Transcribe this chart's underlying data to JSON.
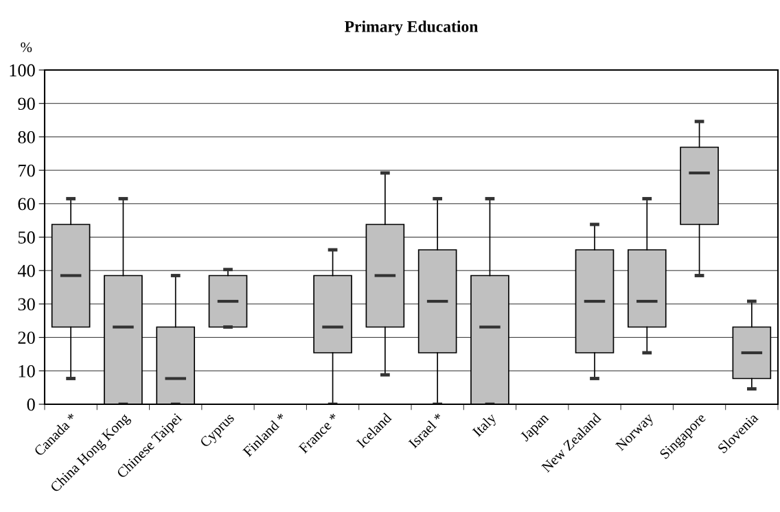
{
  "chart_data": {
    "type": "box",
    "title": "Primary Education",
    "ylabel": "%",
    "categories": [
      "Canada *",
      "China Hong Kong",
      "Chinese Taipei",
      "Cyprus",
      "Finland *",
      "France *",
      "Iceland",
      "Israel *",
      "Italy",
      "Japan",
      "New Zealand",
      "Norway",
      "Singapore",
      "Slovenia"
    ],
    "color": "#c0c0c0",
    "boxes": [
      {
        "low": 7.7,
        "q1": 23.1,
        "median": 38.5,
        "q3": 53.8,
        "high": 61.5
      },
      {
        "low": 0,
        "q1": 0,
        "median": 23.1,
        "q3": 38.5,
        "high": 61.5
      },
      {
        "low": 0,
        "q1": 0,
        "median": 7.7,
        "q3": 23.1,
        "high": 38.5
      },
      {
        "low": 23.1,
        "q1": 23.1,
        "median": 30.8,
        "q3": 38.5,
        "high": 40.3
      },
      null,
      {
        "low": 0,
        "q1": 15.4,
        "median": 23.1,
        "q3": 38.5,
        "high": 46.2
      },
      {
        "low": 8.8,
        "q1": 23.1,
        "median": 38.5,
        "q3": 53.8,
        "high": 69.2
      },
      {
        "low": 0,
        "q1": 15.4,
        "median": 30.8,
        "q3": 46.2,
        "high": 61.5
      },
      {
        "low": 0,
        "q1": 0,
        "median": 23.1,
        "q3": 38.5,
        "high": 61.5
      },
      null,
      {
        "low": 7.7,
        "q1": 15.4,
        "median": 30.8,
        "q3": 46.2,
        "high": 53.8
      },
      {
        "low": 15.4,
        "q1": 23.1,
        "median": 30.8,
        "q3": 46.2,
        "high": 61.5
      },
      {
        "low": 38.5,
        "q1": 53.8,
        "median": 69.2,
        "q3": 76.9,
        "high": 84.6
      },
      {
        "low": 4.6,
        "q1": 7.7,
        "median": 15.4,
        "q3": 23.1,
        "high": 30.8
      }
    ],
    "ylim": [
      0,
      100
    ],
    "yticks": [
      0,
      10,
      20,
      30,
      40,
      50,
      60,
      70,
      80,
      90,
      100
    ],
    "grid": "y",
    "legend": false
  }
}
